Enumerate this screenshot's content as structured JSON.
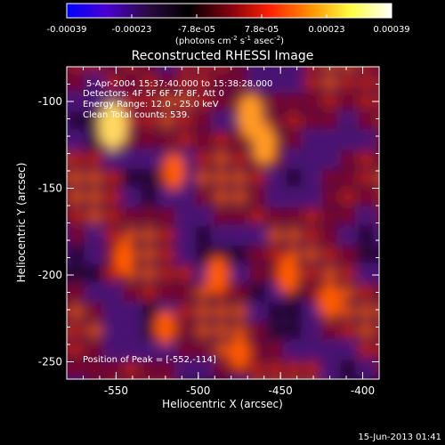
{
  "colorbar": {
    "ticks": [
      "-0.00039",
      "-0.00023",
      "-7.8e-05",
      "7.8e-05",
      "0.00023",
      "0.00039"
    ],
    "units_main": "(photons cm",
    "units_exp1": "-2",
    "units_mid1": " s",
    "units_exp2": "-1",
    "units_mid2": " asec",
    "units_exp3": "-2",
    "units_end": ")",
    "colors": [
      "#0000ff",
      "#4a00d0",
      "#2a0a40",
      "#000000",
      "#800010",
      "#ff2000",
      "#ff9000",
      "#ffff40",
      "#ffffff"
    ]
  },
  "chart_data": {
    "type": "heatmap",
    "title": "Reconstructed RHESSI Image",
    "xlabel": "Heliocentric X (arcsec)",
    "ylabel": "Heliocentric Y (arcsec)",
    "xlim": [
      -580,
      -390
    ],
    "ylim": [
      -260,
      -80
    ],
    "x_ticks": [
      -550,
      -500,
      -450,
      -400
    ],
    "y_ticks": [
      -100,
      -150,
      -200,
      -250
    ],
    "x_tick_labels": [
      "-550",
      "-500",
      "-450",
      "-400"
    ],
    "y_tick_labels": [
      "-100",
      "-150",
      "-200",
      "-250"
    ],
    "value_range": [
      -0.00039,
      0.00039
    ],
    "peak_position": [
      -552,
      -114
    ],
    "annotations": {
      "time": "5-Apr-2004 15:37:40.000 to 15:38:28.000",
      "detectors": "Detectors: 4F 5F 6F 7F 8F, Att 0",
      "energy": "Energy Range: 12.0 - 25.0 keV",
      "clean": "Clean     Total counts: 539.",
      "peak": "Position of Peak = [-552,-114]"
    },
    "footer": "15-Jun-2013 01:41"
  }
}
